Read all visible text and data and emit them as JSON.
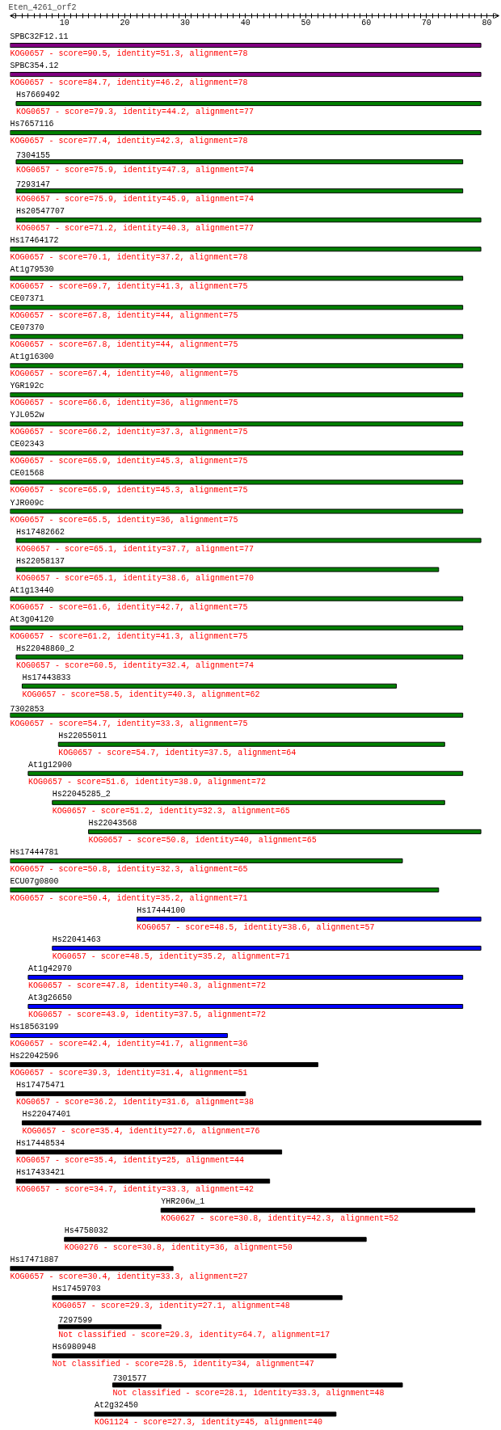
{
  "chart_data": {
    "type": "bar",
    "orientation": "horizontal",
    "title": "Eten_4261_orf2",
    "categories": [
      "SPBC32F12.11",
      "SPBC354.12",
      "Hs7669492",
      "Hs7657116",
      "7304155",
      "7293147",
      "Hs20547707",
      "Hs17464172",
      "At1g79530",
      "CE07371",
      "CE07370",
      "At1g16300",
      "YGR192c",
      "YJL052w",
      "CE02343",
      "CE01568",
      "YJR009c",
      "Hs17482662",
      "Hs22058137",
      "At1g13440",
      "At3g04120",
      "Hs22048860_2",
      "Hs17443833",
      "7302853",
      "Hs22055011",
      "At1g12900",
      "Hs22045285_2",
      "Hs22043568",
      "Hs17444781",
      "ECU07g0800",
      "Hs17444100",
      "Hs22041463",
      "At1g42970",
      "At3g26650",
      "Hs18563199",
      "Hs22042596",
      "Hs17475471",
      "Hs22047401",
      "Hs17448534",
      "Hs17433421",
      "YHR206w_1",
      "Hs4758032",
      "Hs17471887",
      "Hs17459703",
      "7297599",
      "Hs6980948",
      "7301577",
      "At2g32450"
    ],
    "base": [
      1,
      1,
      2,
      1,
      2,
      2,
      2,
      1,
      1,
      1,
      1,
      1,
      1,
      1,
      1,
      1,
      1,
      2,
      2,
      1,
      1,
      2,
      3,
      1,
      9,
      4,
      8,
      14,
      1,
      1,
      22,
      8,
      4,
      4,
      1,
      1,
      2,
      3,
      2,
      2,
      26,
      10,
      1,
      8,
      9,
      8,
      18,
      15
    ],
    "values": [
      78,
      78,
      77,
      78,
      74,
      74,
      77,
      78,
      75,
      75,
      75,
      75,
      75,
      75,
      75,
      75,
      75,
      77,
      70,
      75,
      75,
      74,
      62,
      75,
      64,
      72,
      65,
      65,
      65,
      71,
      57,
      71,
      72,
      72,
      36,
      51,
      38,
      76,
      44,
      42,
      52,
      50,
      27,
      48,
      17,
      47,
      48,
      40
    ],
    "colors": [
      "#800080",
      "#800080",
      "#008000",
      "#008000",
      "#008000",
      "#008000",
      "#008000",
      "#008000",
      "#008000",
      "#008000",
      "#008000",
      "#008000",
      "#008000",
      "#008000",
      "#008000",
      "#008000",
      "#008000",
      "#008000",
      "#008000",
      "#008000",
      "#008000",
      "#008000",
      "#008000",
      "#008000",
      "#008000",
      "#008000",
      "#008000",
      "#008000",
      "#008000",
      "#008000",
      "#0000ff",
      "#0000ff",
      "#0000ff",
      "#0000ff",
      "#0000ff",
      "#000000",
      "#000000",
      "#000000",
      "#000000",
      "#000000",
      "#000000",
      "#000000",
      "#000000",
      "#000000",
      "#000000",
      "#000000",
      "#000000",
      "#000000"
    ],
    "value_labels": [
      "KOG0657 - score=90.5, identity=51.3, alignment=78",
      "KOG0657 - score=84.7, identity=46.2, alignment=78",
      "KOG0657 - score=79.3, identity=44.2, alignment=77",
      "KOG0657 - score=77.4, identity=42.3, alignment=78",
      "KOG0657 - score=75.9, identity=47.3, alignment=74",
      "KOG0657 - score=75.9, identity=45.9, alignment=74",
      "KOG0657 - score=71.2, identity=40.3, alignment=77",
      "KOG0657 - score=70.1, identity=37.2, alignment=78",
      "KOG0657 - score=69.7, identity=41.3, alignment=75",
      "KOG0657 - score=67.8, identity=44, alignment=75",
      "KOG0657 - score=67.8, identity=44, alignment=75",
      "KOG0657 - score=67.4, identity=40, alignment=75",
      "KOG0657 - score=66.6, identity=36, alignment=75",
      "KOG0657 - score=66.2, identity=37.3, alignment=75",
      "KOG0657 - score=65.9, identity=45.3, alignment=75",
      "KOG0657 - score=65.9, identity=45.3, alignment=75",
      "KOG0657 - score=65.5, identity=36, alignment=75",
      "KOG0657 - score=65.1, identity=37.7, alignment=77",
      "KOG0657 - score=65.1, identity=38.6, alignment=70",
      "KOG0657 - score=61.6, identity=42.7, alignment=75",
      "KOG0657 - score=61.2, identity=41.3, alignment=75",
      "KOG0657 - score=60.5, identity=32.4, alignment=74",
      "KOG0657 - score=58.5, identity=40.3, alignment=62",
      "KOG0657 - score=54.7, identity=33.3, alignment=75",
      "KOG0657 - score=54.7, identity=37.5, alignment=64",
      "KOG0657 - score=51.6, identity=38.9, alignment=72",
      "KOG0657 - score=51.2, identity=32.3, alignment=65",
      "KOG0657 - score=50.8, identity=40, alignment=65",
      "KOG0657 - score=50.8, identity=32.3, alignment=65",
      "KOG0657 - score=50.4, identity=35.2, alignment=71",
      "KOG0657 - score=48.5, identity=38.6, alignment=57",
      "KOG0657 - score=48.5, identity=35.2, alignment=71",
      "KOG0657 - score=47.8, identity=40.3, alignment=72",
      "KOG0657 - score=43.9, identity=37.5, alignment=72",
      "KOG0657 - score=42.4, identity=41.7, alignment=36",
      "KOG0657 - score=39.3, identity=31.4, alignment=51",
      "KOG0657 - score=36.2, identity=31.6, alignment=38",
      "KOG0657 - score=35.4, identity=27.6, alignment=76",
      "KOG0657 - score=35.4, identity=25, alignment=44",
      "KOG0657 - score=34.7, identity=33.3, alignment=42",
      "KOG0627 - score=30.8, identity=42.3, alignment=52",
      "KOG0276 - score=30.8, identity=36, alignment=50",
      "KOG0657 - score=30.4, identity=33.3, alignment=27",
      "KOG0657 - score=29.3, identity=27.1, alignment=48",
      "Not classified - score=29.3, identity=64.7, alignment=17",
      "Not classified - score=28.5, identity=34, alignment=47",
      "Not classified - score=28.1, identity=33.3, alignment=48",
      "KOG1124 - score=27.3, identity=45, alignment=40"
    ],
    "xlim": [
      1,
      82
    ],
    "xticks": [
      {
        "value": 2,
        "label": null
      },
      {
        "value": 3,
        "label": null
      },
      {
        "value": 4,
        "label": null
      },
      {
        "value": 5,
        "label": null
      },
      {
        "value": 6,
        "label": null
      },
      {
        "value": 7,
        "label": null
      },
      {
        "value": 8,
        "label": null
      },
      {
        "value": 9,
        "label": null
      },
      10,
      {
        "value": 11,
        "label": null
      },
      {
        "value": 12,
        "label": null
      },
      {
        "value": 13,
        "label": null
      },
      {
        "value": 14,
        "label": null
      },
      {
        "value": 15,
        "label": null
      },
      {
        "value": 16,
        "label": null
      },
      {
        "value": 17,
        "label": null
      },
      {
        "value": 18,
        "label": null
      },
      {
        "value": 19,
        "label": null
      },
      20,
      {
        "value": 21,
        "label": null
      },
      {
        "value": 22,
        "label": null
      },
      {
        "value": 23,
        "label": null
      },
      {
        "value": 24,
        "label": null
      },
      {
        "value": 25,
        "label": null
      },
      {
        "value": 26,
        "label": null
      },
      {
        "value": 27,
        "label": null
      },
      {
        "value": 28,
        "label": null
      },
      {
        "value": 29,
        "label": null
      },
      30,
      {
        "value": 31,
        "label": null
      },
      {
        "value": 32,
        "label": null
      },
      {
        "value": 33,
        "label": null
      },
      {
        "value": 34,
        "label": null
      },
      {
        "value": 35,
        "label": null
      },
      {
        "value": 36,
        "label": null
      },
      {
        "value": 37,
        "label": null
      },
      {
        "value": 38,
        "label": null
      },
      {
        "value": 39,
        "label": null
      },
      40,
      {
        "value": 41,
        "label": null
      },
      {
        "value": 42,
        "label": null
      },
      {
        "value": 43,
        "label": null
      },
      {
        "value": 44,
        "label": null
      },
      {
        "value": 45,
        "label": null
      },
      {
        "value": 46,
        "label": null
      },
      {
        "value": 47,
        "label": null
      },
      {
        "value": 48,
        "label": null
      },
      {
        "value": 49,
        "label": null
      },
      50,
      {
        "value": 51,
        "label": null
      },
      {
        "value": 52,
        "label": null
      },
      {
        "value": 53,
        "label": null
      },
      {
        "value": 54,
        "label": null
      },
      {
        "value": 55,
        "label": null
      },
      {
        "value": 56,
        "label": null
      },
      {
        "value": 57,
        "label": null
      },
      {
        "value": 58,
        "label": null
      },
      {
        "value": 59,
        "label": null
      },
      60,
      {
        "value": 61,
        "label": null
      },
      {
        "value": 62,
        "label": null
      },
      {
        "value": 63,
        "label": null
      },
      {
        "value": 64,
        "label": null
      },
      {
        "value": 65,
        "label": null
      },
      {
        "value": 66,
        "label": null
      },
      {
        "value": 67,
        "label": null
      },
      {
        "value": 68,
        "label": null
      },
      {
        "value": 69,
        "label": null
      },
      70,
      {
        "value": 71,
        "label": null
      },
      {
        "value": 72,
        "label": null
      },
      {
        "value": 73,
        "label": null
      },
      {
        "value": 74,
        "label": null
      },
      {
        "value": 75,
        "label": null
      },
      {
        "value": 76,
        "label": null
      },
      {
        "value": 77,
        "label": null
      },
      {
        "value": 78,
        "label": null
      },
      {
        "value": 79,
        "label": null
      },
      80,
      {
        "value": 81,
        "label": null
      }
    ]
  }
}
